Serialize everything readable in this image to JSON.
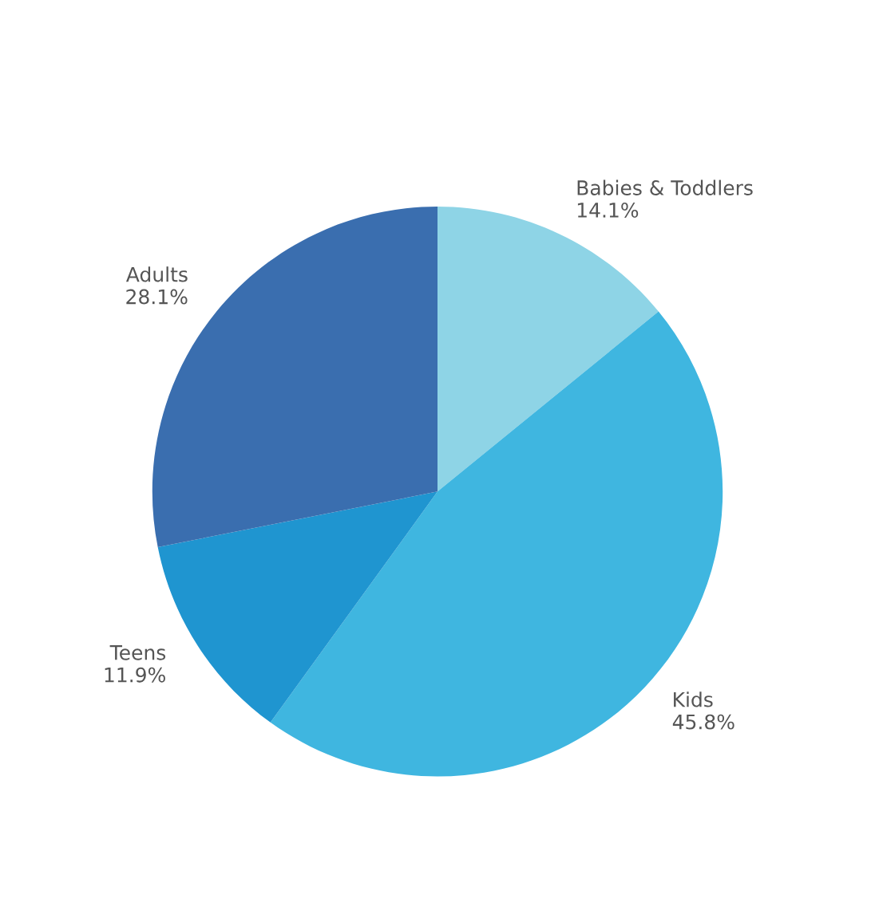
{
  "chart_data": {
    "type": "pie",
    "categories": [
      "Babies & Toddlers",
      "Kids",
      "Teens",
      "Adults"
    ],
    "values": [
      14.1,
      45.8,
      11.9,
      28.1
    ],
    "value_labels": [
      "14.1%",
      "45.8%",
      "11.9%",
      "28.1%"
    ],
    "colors": [
      "#8ed4e6",
      "#3fb6e0",
      "#1f95d0",
      "#3a6eaf"
    ]
  }
}
